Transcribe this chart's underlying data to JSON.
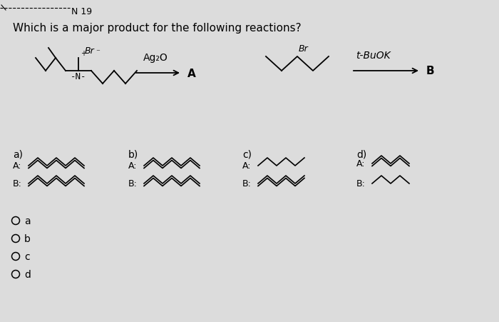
{
  "title": "Which is a major product for the following reactions?",
  "question_number": "N 19",
  "bg_color": "#dcdcdc",
  "text_color": "#000000",
  "reagent1": "Ag₂O",
  "product1": "A",
  "reagent2": "t-BuOK",
  "product2": "B",
  "answer_options": [
    "a",
    "b",
    "c",
    "d"
  ],
  "sections": [
    "a)",
    "b)",
    "c)",
    "d)"
  ]
}
